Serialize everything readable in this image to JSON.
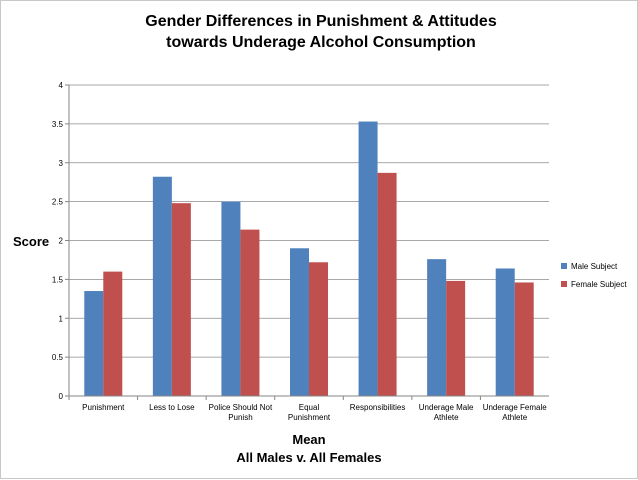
{
  "chart_data": {
    "type": "bar",
    "title_lines": [
      "Gender Differences in Punishment & Attitudes",
      "towards Underage Alcohol Consumption"
    ],
    "xlabel": "Mean",
    "xlabel_sub": "All Males v. All Females",
    "ylabel": "Score",
    "ylim": [
      0,
      4
    ],
    "yticks": [
      "0",
      "0.5",
      "1",
      "1.5",
      "2",
      "2.5",
      "3",
      "3.5",
      "4"
    ],
    "grid": true,
    "legend_position": "right",
    "categories": [
      [
        "Punishment"
      ],
      [
        "Less to Lose"
      ],
      [
        "Police Should Not",
        "Punish"
      ],
      [
        "Equal",
        "Punishment"
      ],
      [
        "Responsibilities"
      ],
      [
        "Underage Male",
        "Athlete"
      ],
      [
        "Underage Female",
        "Athlete"
      ]
    ],
    "series": [
      {
        "name": "Male Subject",
        "color": "#4f81bd",
        "values": [
          1.35,
          2.82,
          2.5,
          1.9,
          3.53,
          1.76,
          1.64
        ]
      },
      {
        "name": "Female Subject",
        "color": "#c0504d",
        "values": [
          1.6,
          2.48,
          2.14,
          1.72,
          2.87,
          1.48,
          1.46
        ]
      }
    ]
  }
}
